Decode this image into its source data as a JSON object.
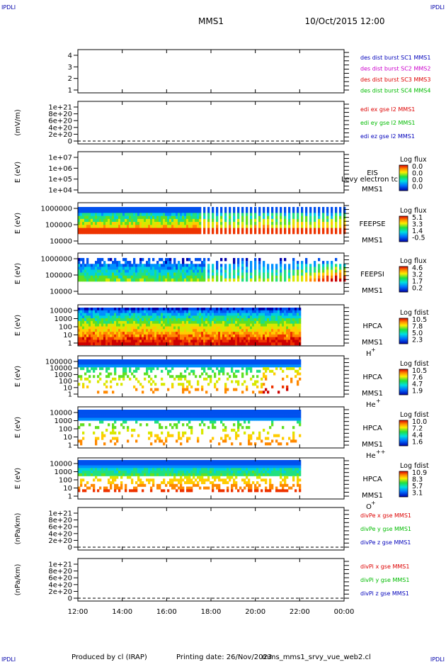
{
  "header": {
    "left_tag": "IPDLI",
    "right_tag": "IPDLI",
    "title": "MMS1",
    "datetime": "10/Oct/2015 12:00"
  },
  "footer": {
    "produced_by": "Produced by cl (IRAP)",
    "printing_date": "Printing date: 26/Nov/2023",
    "file": "mms_mms1_srvy_vue_web2.cl",
    "left_tag": "IPDLI",
    "right_tag": "IPDLI"
  },
  "colors": {
    "red": "#dd0000",
    "green": "#00bb00",
    "blue": "#0000bb",
    "magenta": "#cc00cc"
  },
  "chart_data": {
    "type": "multi-panel",
    "x_tick_labels": [
      "12:00",
      "14:00",
      "16:00",
      "18:00",
      "20:00",
      "22:00",
      "00:00"
    ],
    "x_range_hours": [
      12,
      24
    ],
    "data_end_hours": 22,
    "panels": [
      {
        "id": "scpos",
        "type": "line",
        "ylabel": "",
        "yticks": [
          "1",
          "2",
          "3",
          "4"
        ],
        "legend": [
          {
            "text": "des dist burst SC1 MMS1",
            "color": "#0000bb"
          },
          {
            "text": "des dist burst SC2 MMS2",
            "color": "#cc00cc"
          },
          {
            "text": "des dist burst SC3 MMS3",
            "color": "#dd0000"
          },
          {
            "text": "des dist burst SC4 MMS4",
            "color": "#00bb00"
          }
        ]
      },
      {
        "id": "edi",
        "type": "line",
        "ylabel": "(mV/m)",
        "yticks": [
          "0",
          "2e+20",
          "4e+20",
          "6e+20",
          "8e+20",
          "1e+21"
        ],
        "zero_line": true,
        "legend": [
          {
            "text": "edi ex gse l2 MMS1",
            "color": "#dd0000"
          },
          {
            "text": "edi ey gse l2 MMS1",
            "color": "#00bb00"
          },
          {
            "text": "edi ez gse l2 MMS1",
            "color": "#0000bb"
          }
        ]
      },
      {
        "id": "eis",
        "type": "heatmap",
        "ylabel": "E (eV)",
        "yticks": [
          "1e+04",
          "1e+05",
          "1e+06",
          "1e+07"
        ],
        "instrument": [
          "EIS",
          "MMS1"
        ],
        "overlay_text": "Levy electron tc",
        "colorbar_title": "Log flux",
        "colorbar_values": [
          "0.0",
          "0.0",
          "0.0",
          "0.0"
        ]
      },
      {
        "id": "feepse",
        "type": "heatmap",
        "ylabel": "E (eV)",
        "yticks": [
          "10000",
          "100000",
          "1000000"
        ],
        "instrument": [
          "FEEPSE",
          "MMS1"
        ],
        "colorbar_title": "Log flux",
        "colorbar_values": [
          "5.1",
          "3.3",
          "1.4",
          "-0.5"
        ]
      },
      {
        "id": "feepsi",
        "type": "heatmap",
        "ylabel": "E (eV)",
        "yticks": [
          "10000",
          "100000",
          "1000000"
        ],
        "instrument": [
          "FEEPSI",
          "MMS1"
        ],
        "colorbar_title": "Log flux",
        "colorbar_values": [
          "4.6",
          "3.2",
          "1.7",
          "0.2"
        ]
      },
      {
        "id": "hpca_h",
        "type": "heatmap",
        "ylabel": "E (eV)",
        "yticks": [
          "1",
          "10",
          "100",
          "1000",
          "10000"
        ],
        "instrument": [
          "HPCA",
          "MMS1"
        ],
        "species": "H",
        "charge": "+",
        "colorbar_title": "Log fdist",
        "colorbar_values": [
          "10.5",
          "7.8",
          "5.0",
          "2.3"
        ]
      },
      {
        "id": "hpca_he",
        "type": "heatmap",
        "ylabel": "E (eV)",
        "yticks": [
          "1",
          "10",
          "100",
          "1000",
          "10000",
          "100000"
        ],
        "instrument": [
          "HPCA",
          "MMS1"
        ],
        "species": "He",
        "charge": "+",
        "colorbar_title": "Log fdist",
        "colorbar_values": [
          "10.5",
          "7.6",
          "4.7",
          "1.9"
        ]
      },
      {
        "id": "hpca_hepp",
        "type": "heatmap",
        "ylabel": "E (eV)",
        "yticks": [
          "1",
          "10",
          "100",
          "1000",
          "10000"
        ],
        "instrument": [
          "HPCA",
          "MMS1"
        ],
        "species": "He",
        "charge": "++",
        "colorbar_title": "Log fdist",
        "colorbar_values": [
          "10.0",
          "7.2",
          "4.4",
          "1.6"
        ]
      },
      {
        "id": "hpca_o",
        "type": "heatmap",
        "ylabel": "E (eV)",
        "yticks": [
          "1",
          "10",
          "100",
          "1000",
          "10000"
        ],
        "instrument": [
          "HPCA",
          "MMS1"
        ],
        "species": "O",
        "charge": "+",
        "colorbar_title": "Log fdist",
        "colorbar_values": [
          "10.9",
          "8.3",
          "5.7",
          "3.1"
        ]
      },
      {
        "id": "divpe",
        "type": "line",
        "ylabel": "(nPa/km)",
        "yticks": [
          "0",
          "2e+20",
          "4e+20",
          "6e+20",
          "8e+20",
          "1e+21"
        ],
        "zero_line": true,
        "legend": [
          {
            "text": "divPe x gse MMS1",
            "color": "#dd0000"
          },
          {
            "text": "divPe y gse MMS1",
            "color": "#00bb00"
          },
          {
            "text": "divPe z gse MMS1",
            "color": "#0000bb"
          }
        ]
      },
      {
        "id": "divpi",
        "type": "line",
        "ylabel": "(nPa/km)",
        "yticks": [
          "0",
          "2e+20",
          "4e+20",
          "6e+20",
          "8e+20",
          "1e+21"
        ],
        "zero_line": true,
        "legend": [
          {
            "text": "divPi x gse MMS1",
            "color": "#dd0000"
          },
          {
            "text": "divPi y gse MMS1",
            "color": "#00bb00"
          },
          {
            "text": "divPi z gse MMS1",
            "color": "#0000bb"
          }
        ]
      }
    ]
  }
}
